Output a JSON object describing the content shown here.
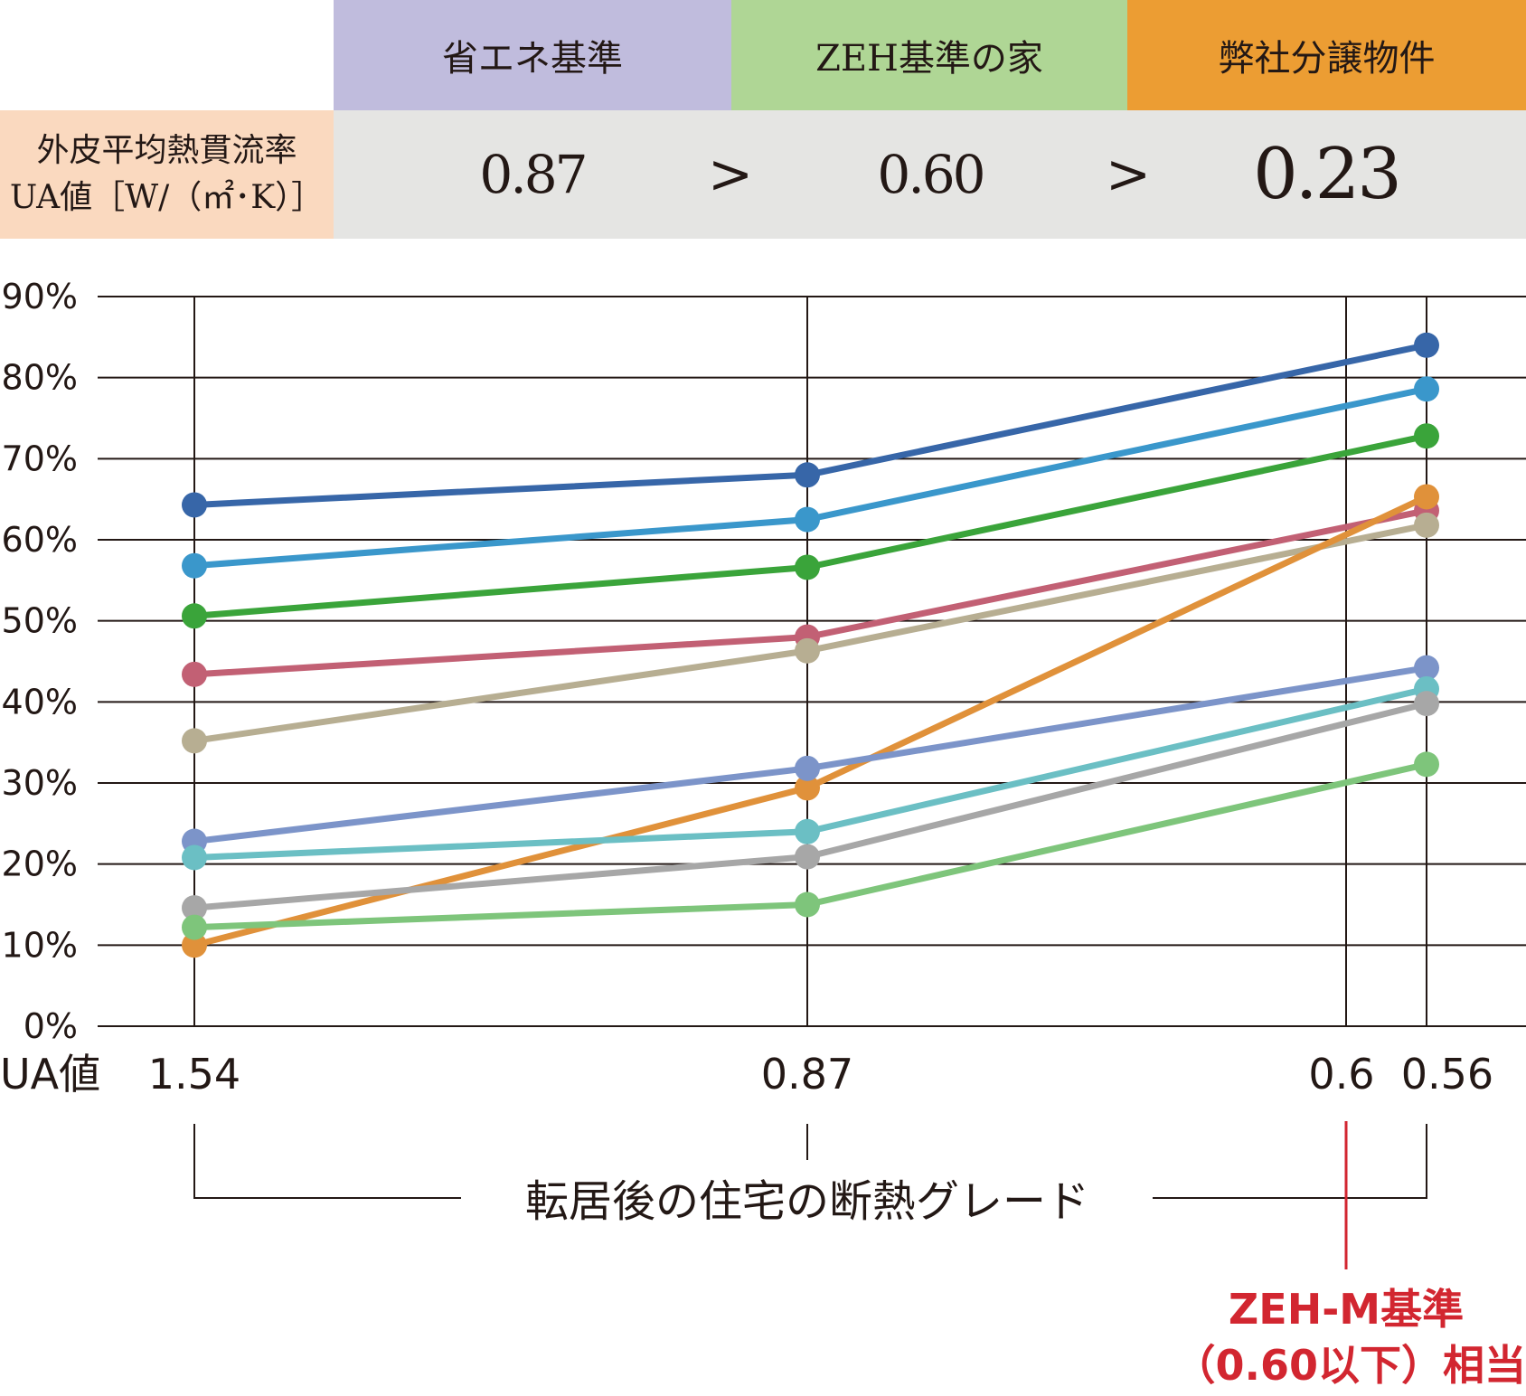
{
  "header_table": {
    "columns": [
      "省エネ基準",
      "ZEH基準の家",
      "弊社分譲物件"
    ],
    "row_label_line1": "外皮平均熱貫流率",
    "row_label_line2": "UA値［W/（㎡･K）］",
    "values": [
      "0.87",
      "0.60",
      "0.23"
    ],
    "separator": ">",
    "colors": [
      "#c0bcdd",
      "#afd695",
      "#ec9d33"
    ],
    "row_label_color": "#fad9bf",
    "row_value_color": "#e5e5e3"
  },
  "chart_data": {
    "type": "line",
    "x_axis_title": "UA値",
    "x_categories": [
      "1.54",
      "0.87",
      "0.6",
      "0.56"
    ],
    "y_tick_labels": [
      "0%",
      "10%",
      "20%",
      "30%",
      "40%",
      "50%",
      "60%",
      "70%",
      "80%",
      "90%"
    ],
    "ylim": [
      0,
      90
    ],
    "grid": true,
    "xlabel": "転居後の住宅の断熱グレード",
    "annotation_line1": "ZEH-M基準",
    "annotation_line2": "（0.60以下）相当",
    "annotation_color": "#d22630",
    "x": [
      1.54,
      0.87,
      0.56
    ],
    "series": [
      {
        "color": "#3766a8",
        "values": [
          64.3,
          68.0,
          84.0
        ]
      },
      {
        "color": "#3a97cb",
        "values": [
          56.8,
          62.5,
          78.6
        ]
      },
      {
        "color": "#3aa43a",
        "values": [
          50.6,
          56.6,
          72.8
        ]
      },
      {
        "color": "#c26074",
        "values": [
          43.4,
          48.0,
          63.6
        ]
      },
      {
        "color": "#b7ae92",
        "values": [
          35.2,
          46.3,
          61.8
        ]
      },
      {
        "color": "#e0913a",
        "values": [
          10.0,
          29.4,
          65.3
        ]
      },
      {
        "color": "#7c94c9",
        "values": [
          22.8,
          31.8,
          44.2
        ]
      },
      {
        "color": "#6bbfc4",
        "values": [
          20.8,
          24.0,
          41.6
        ]
      },
      {
        "color": "#a7a7a7",
        "values": [
          14.6,
          20.9,
          39.8
        ]
      },
      {
        "color": "#7ec57b",
        "values": [
          12.2,
          15.0,
          32.3
        ]
      }
    ]
  }
}
